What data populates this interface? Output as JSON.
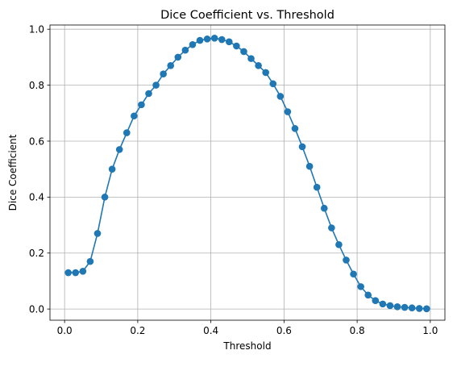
{
  "chart_data": {
    "type": "line",
    "title": "Dice Coefficient vs. Threshold",
    "xlabel": "Threshold",
    "ylabel": "Dice Coefficient",
    "xlim": [
      -0.04,
      1.04
    ],
    "ylim": [
      -0.04,
      1.015
    ],
    "xticks": [
      0.0,
      0.2,
      0.4,
      0.6,
      0.8,
      1.0
    ],
    "xtick_labels": [
      "0.0",
      "0.2",
      "0.4",
      "0.6",
      "0.8",
      "1.0"
    ],
    "yticks": [
      0.0,
      0.2,
      0.4,
      0.6,
      0.8,
      1.0
    ],
    "ytick_labels": [
      "0.0",
      "0.2",
      "0.4",
      "0.6",
      "0.8",
      "1.0"
    ],
    "grid": true,
    "legend": false,
    "marker": "circle",
    "colors": {
      "series": "#1f77b4",
      "grid": "#b0b0b0",
      "axes": "#000000"
    },
    "series": [
      {
        "x": [
          0.01,
          0.03,
          0.05,
          0.07,
          0.09,
          0.11,
          0.13,
          0.15,
          0.17,
          0.19,
          0.21,
          0.23,
          0.25,
          0.27,
          0.29,
          0.31,
          0.33,
          0.35,
          0.37,
          0.39,
          0.41,
          0.43,
          0.45,
          0.47,
          0.49,
          0.51,
          0.53,
          0.55,
          0.57,
          0.59,
          0.61,
          0.63,
          0.65,
          0.67,
          0.69,
          0.71,
          0.73,
          0.75,
          0.77,
          0.79,
          0.81,
          0.83,
          0.85,
          0.87,
          0.89,
          0.91,
          0.93,
          0.95,
          0.97,
          0.99
        ],
        "values": [
          0.13,
          0.13,
          0.135,
          0.17,
          0.27,
          0.4,
          0.5,
          0.57,
          0.63,
          0.69,
          0.73,
          0.77,
          0.8,
          0.84,
          0.87,
          0.9,
          0.925,
          0.945,
          0.96,
          0.965,
          0.968,
          0.963,
          0.955,
          0.94,
          0.92,
          0.895,
          0.87,
          0.845,
          0.805,
          0.76,
          0.705,
          0.645,
          0.58,
          0.51,
          0.435,
          0.36,
          0.29,
          0.23,
          0.175,
          0.125,
          0.08,
          0.05,
          0.03,
          0.018,
          0.012,
          0.008,
          0.006,
          0.004,
          0.002,
          0.001
        ]
      }
    ]
  }
}
